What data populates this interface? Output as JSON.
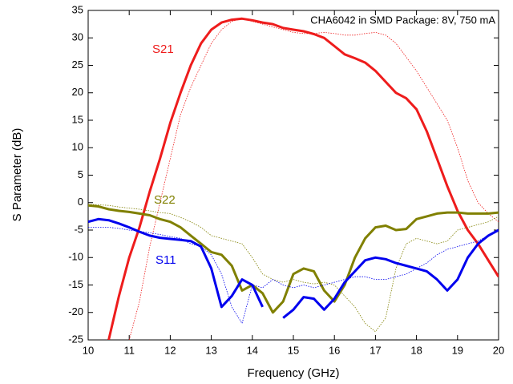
{
  "chart_data": {
    "type": "line",
    "annotation": "CHA6042 in SMD Package: 8V, 750 mA",
    "x_label": "Frequency (GHz)",
    "y_label": "S Parameter (dB)",
    "x": [
      10,
      10.25,
      10.5,
      10.75,
      11,
      11.25,
      11.5,
      11.75,
      12,
      12.25,
      12.5,
      12.75,
      13,
      13.25,
      13.5,
      13.75,
      14,
      14.25,
      14.5,
      14.75,
      15,
      15.25,
      15.5,
      15.75,
      16,
      16.25,
      16.5,
      16.75,
      17,
      17.25,
      17.5,
      17.75,
      18,
      18.25,
      18.5,
      18.75,
      19,
      19.25,
      19.5,
      19.75,
      20
    ],
    "xlim": [
      10,
      20
    ],
    "xticks": [
      10,
      11,
      12,
      13,
      14,
      15,
      16,
      17,
      18,
      19,
      20
    ],
    "ylim": [
      -25,
      35
    ],
    "yticks": [
      -25,
      -20,
      -15,
      -10,
      -5,
      0,
      5,
      10,
      15,
      20,
      25,
      30,
      35
    ],
    "grid": false,
    "series": [
      {
        "name": "S21",
        "color": "#ee1c1c",
        "line_style": "solid",
        "values": [
          null,
          null,
          -25,
          -17,
          -10,
          -4.5,
          2,
          8,
          14.5,
          20,
          25,
          29,
          31.5,
          32.8,
          33.3,
          33.5,
          33.2,
          32.8,
          32.5,
          31.8,
          31.5,
          31.2,
          30.7,
          30,
          28.5,
          27,
          26.3,
          25.5,
          24,
          22,
          20,
          19,
          17,
          13,
          8,
          3,
          -1.5,
          -5,
          -7.5,
          -10.5,
          -13.5
        ]
      },
      {
        "color": "#ee1c1c",
        "line_style": "dotted",
        "values": [
          null,
          null,
          null,
          null,
          -25,
          -18,
          -8,
          0,
          8,
          16,
          21,
          25,
          29,
          31.5,
          33,
          33.5,
          33,
          32.5,
          32,
          31.5,
          31,
          30.8,
          30.8,
          31,
          30.8,
          30.5,
          30.5,
          30.8,
          31,
          30.5,
          29,
          26.5,
          24,
          21,
          18,
          15,
          10,
          4,
          0,
          -2,
          -3.5
        ]
      },
      {
        "name": "S22",
        "color": "#808000",
        "line_style": "solid",
        "values": [
          -0.5,
          -0.7,
          -1.2,
          -1.5,
          -1.7,
          -2,
          -2.3,
          -3,
          -3.5,
          -4.5,
          -6,
          -7.5,
          -9,
          -9.5,
          -11.5,
          -16,
          -15,
          -16.5,
          -20,
          -18,
          -13,
          -12,
          -12.5,
          -16,
          -18,
          -15,
          -10,
          -6.5,
          -4.5,
          -4.2,
          -5,
          -4.8,
          -3,
          -2.5,
          -2,
          -1.8,
          -1.8,
          -2,
          -2,
          -2,
          -1.8
        ]
      },
      {
        "color": "#808000",
        "line_style": "dotted",
        "values": [
          -0.3,
          -0.4,
          -0.5,
          -0.8,
          -1,
          -1.2,
          -1.5,
          -1.8,
          -2,
          -2.7,
          -3.5,
          -4.5,
          -6,
          -6.5,
          -7,
          -7.5,
          -10,
          -13,
          -14,
          -14.5,
          -14,
          -14.5,
          -14.8,
          -14.5,
          -15,
          -17,
          -19,
          -22,
          -23.5,
          -21,
          -12,
          -7.5,
          -6.5,
          -7,
          -7.5,
          -7,
          -5,
          -4.5,
          -4,
          -3.5,
          -2.5
        ]
      },
      {
        "name": "S11",
        "color": "#0000ee",
        "line_style": "solid",
        "values": [
          -3.5,
          -3,
          -3.2,
          -3.8,
          -4.5,
          -5.3,
          -6,
          -6.4,
          -6.6,
          -6.8,
          -7,
          -8,
          -12,
          -19,
          -17,
          -14,
          -15,
          -19,
          null,
          -21,
          -19.5,
          -17.2,
          -17.5,
          -19.5,
          -17.5,
          -14.5,
          -12.5,
          -10.5,
          -10,
          -10.3,
          -11,
          -11.5,
          -12,
          -12.5,
          -14,
          -16,
          -14,
          -10,
          -7.5,
          -6,
          -5
        ]
      },
      {
        "color": "#0000ee",
        "line_style": "dotted",
        "values": [
          -4.5,
          -4.5,
          -4.5,
          -4.7,
          -5,
          -5.2,
          -5.5,
          -5.8,
          -6.2,
          -6.5,
          -7.5,
          -8,
          -9.5,
          -13,
          -19,
          -22,
          -15,
          -15.5,
          -14,
          -15,
          -15.5,
          -15,
          -15.5,
          -15,
          -14.5,
          -14,
          -13.5,
          -13.5,
          -14,
          -14,
          -13.5,
          -13,
          -12,
          -11,
          -9.5,
          -8.5,
          -8,
          -7.5,
          -7,
          -6,
          -5
        ]
      }
    ]
  }
}
